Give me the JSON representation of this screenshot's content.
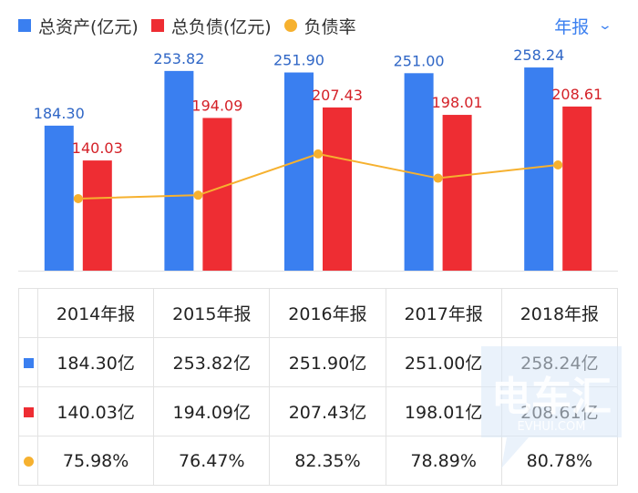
{
  "legend": {
    "total_assets": "总资产(亿元)",
    "total_liabilities": "总负债(亿元)",
    "debt_ratio": "负债率"
  },
  "period_selector": {
    "label": "年报"
  },
  "colors": {
    "assets": "#3a7ff0",
    "liabilities": "#ee2d33",
    "ratio": "#f6b12f"
  },
  "chart_data": {
    "type": "bar",
    "categories": [
      "2014年报",
      "2015年报",
      "2016年报",
      "2017年报",
      "2018年报"
    ],
    "series": [
      {
        "name": "总资产(亿元)",
        "kind": "bar",
        "values": [
          184.3,
          253.82,
          251.9,
          251.0,
          258.24
        ],
        "labels": [
          "184.30",
          "253.82",
          "251.90",
          "251.00",
          "258.24"
        ]
      },
      {
        "name": "总负债(亿元)",
        "kind": "bar",
        "values": [
          140.03,
          194.09,
          207.43,
          198.01,
          208.61
        ],
        "labels": [
          "140.03",
          "194.09",
          "207.43",
          "198.01",
          "208.61"
        ]
      },
      {
        "name": "负债率",
        "kind": "line",
        "values": [
          75.98,
          76.47,
          82.35,
          78.89,
          80.78
        ]
      }
    ],
    "grid": false
  },
  "table": {
    "headers": [
      "2014年报",
      "2015年报",
      "2016年报",
      "2017年报",
      "2018年报"
    ],
    "rows": [
      {
        "marker": "square",
        "color_key": "assets",
        "cells": [
          "184.30亿",
          "253.82亿",
          "251.90亿",
          "251.00亿",
          "258.24亿"
        ]
      },
      {
        "marker": "square",
        "color_key": "liabilities",
        "cells": [
          "140.03亿",
          "194.09亿",
          "207.43亿",
          "198.01亿",
          "208.61亿"
        ]
      },
      {
        "marker": "dot",
        "color_key": "ratio",
        "cells": [
          "75.98%",
          "76.47%",
          "82.35%",
          "78.89%",
          "80.78%"
        ]
      }
    ]
  },
  "watermark": {
    "text": "电车汇",
    "subtext": "EVHUI.COM"
  }
}
